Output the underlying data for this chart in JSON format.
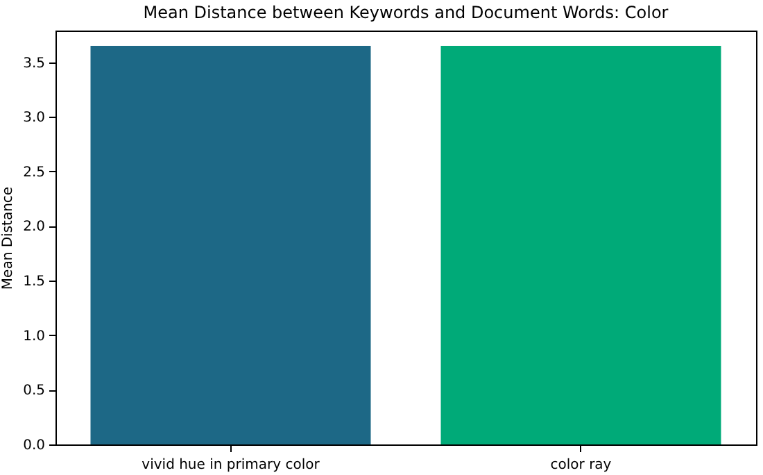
{
  "chart_data": {
    "type": "bar",
    "title": "Mean Distance between Keywords and Document Words: Color",
    "ylabel": "Mean Distance",
    "categories": [
      "vivid hue in primary color",
      "color ray"
    ],
    "values": [
      3.65,
      3.65
    ],
    "colors": [
      "#1d6886",
      "#00aa78"
    ],
    "ylim": [
      0,
      3.79
    ],
    "yticks": [
      {
        "value": 0,
        "label": "0.0"
      },
      0.5,
      {
        "value": 1,
        "label": "1.0"
      },
      1.5,
      {
        "value": 2,
        "label": "2.0"
      },
      2.5,
      {
        "value": 3,
        "label": "3.0"
      },
      3.5
    ],
    "grid": false
  }
}
